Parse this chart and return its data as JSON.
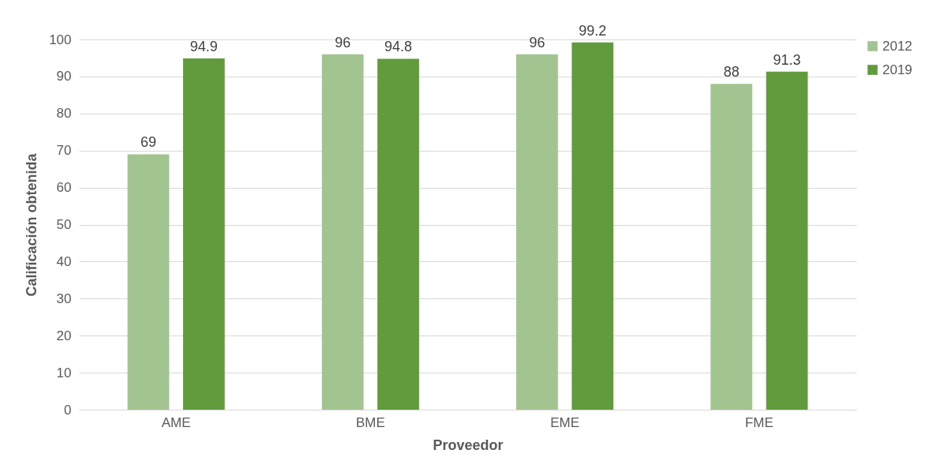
{
  "chart_data": {
    "type": "bar",
    "xlabel": "Proveedor",
    "ylabel": "Calificación obtenida",
    "categories": [
      "AME",
      "BME",
      "EME",
      "FME"
    ],
    "series": [
      {
        "name": "2012",
        "color": "#a2c490",
        "values": [
          69,
          96,
          96,
          88
        ]
      },
      {
        "name": "2019",
        "color": "#629b3e",
        "values": [
          94.9,
          94.8,
          99.2,
          91.3
        ]
      }
    ],
    "ylim": [
      0,
      100
    ],
    "yticks": [
      0,
      10,
      20,
      30,
      40,
      50,
      60,
      70,
      80,
      90,
      100
    ],
    "grid": "y",
    "legend": "right",
    "data_labels": true
  }
}
